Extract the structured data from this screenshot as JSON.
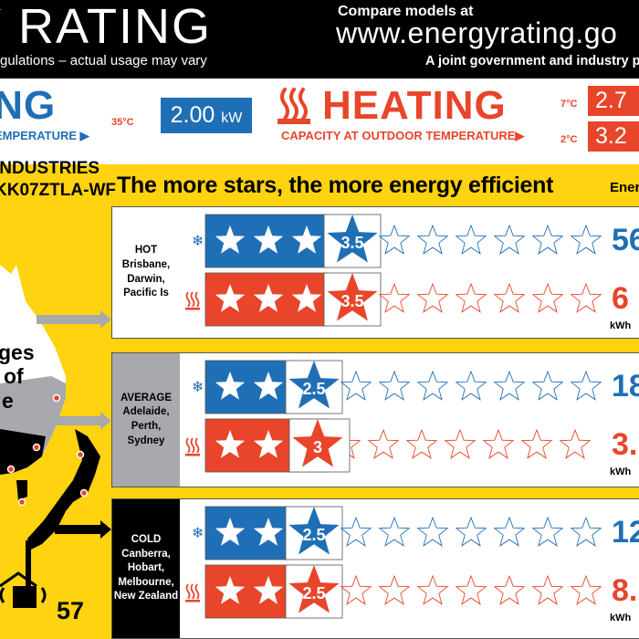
{
  "header": {
    "title": "Y RATING",
    "regulations": "gulations – actual usage may vary",
    "compare": "Compare models at",
    "website": "www.energyrating.go",
    "joint": "A joint government and industry p"
  },
  "cooling": {
    "word": "ING",
    "caption": "EMPERATURE ▶",
    "temp": "35°C",
    "value": "2.00",
    "unit": "kW"
  },
  "heating": {
    "word": "HEATING",
    "caption": "CAPACITY AT OUTDOOR TEMPERATURE▶",
    "temp1": "7°C",
    "value1": "2.7",
    "temp2": "2°C",
    "value2": "3.2"
  },
  "product": {
    "brand": "INDUSTRIES",
    "model": "KK07ZTLA-WF",
    "tagline": "The more stars, the more energy efficient",
    "energy_label": "Ener"
  },
  "map": {
    "text1": "ges",
    "text2": "of",
    "text3": "e",
    "noise": "57"
  },
  "zones": [
    {
      "name": "HOT",
      "cities": [
        "Brisbane,",
        "Darwin,",
        "Pacific Is"
      ],
      "cool_stars": 3.5,
      "heat_stars": 3.5,
      "cool_kwh": "56",
      "heat_kwh": "6",
      "unit": "kWh"
    },
    {
      "name": "AVERAGE",
      "cities": [
        "Adelaide,",
        "Perth,",
        "Sydney"
      ],
      "cool_stars": 2.5,
      "heat_stars": 3,
      "cool_kwh": "18",
      "heat_kwh": "3.",
      "unit": "kWh"
    },
    {
      "name": "COLD",
      "cities": [
        "Canberra,",
        "Hobart,",
        "Melbourne,",
        "New Zealand"
      ],
      "cool_stars": 2.5,
      "heat_stars": 2.5,
      "cool_kwh": "12",
      "heat_kwh": "8.",
      "unit": "kWh"
    }
  ],
  "colors": {
    "blue": "#1f6fb6",
    "red": "#e8452a",
    "yellow": "#ffd30f",
    "grey": "#a7a9ac"
  }
}
